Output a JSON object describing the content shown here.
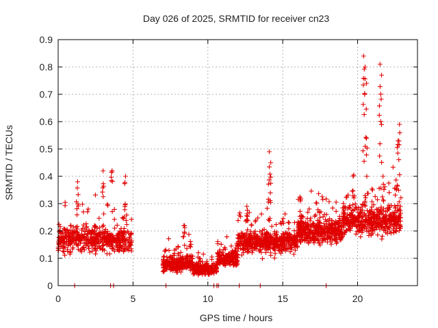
{
  "chart_data": {
    "type": "scatter",
    "title": "Day 026 of 2025, SRMTID for receiver cn23",
    "xlabel": "GPS time / hours",
    "ylabel": "SRMTID / TECUs",
    "xlim": [
      0,
      24
    ],
    "ylim": [
      0,
      0.9
    ],
    "xticks": [
      0,
      5,
      10,
      15,
      20
    ],
    "yticks": [
      0,
      0.1,
      0.2,
      0.3,
      0.4,
      0.5,
      0.6,
      0.7,
      0.8,
      0.9
    ],
    "grid": true,
    "marker": "plus",
    "color": "#e00000",
    "series": [
      {
        "name": "SRMTID",
        "clusters": [
          {
            "x": [
              0.0,
              4.9
            ],
            "baseline": 0.17,
            "spread": 0.08,
            "n": 520
          },
          {
            "x": [
              7.0,
              9.0
            ],
            "baseline": 0.08,
            "spread": 0.05,
            "n": 260
          },
          {
            "x": [
              9.0,
              10.6
            ],
            "baseline": 0.06,
            "spread": 0.03,
            "n": 220
          },
          {
            "x": [
              10.6,
              12.0
            ],
            "baseline": 0.1,
            "spread": 0.05,
            "n": 180
          },
          {
            "x": [
              12.0,
              16.0
            ],
            "baseline": 0.16,
            "spread": 0.07,
            "n": 480
          },
          {
            "x": [
              16.0,
              19.0
            ],
            "baseline": 0.2,
            "spread": 0.08,
            "n": 420
          },
          {
            "x": [
              19.0,
              22.9
            ],
            "baseline": 0.24,
            "spread": 0.09,
            "n": 480
          }
        ],
        "peaks": [
          {
            "x": 1.3,
            "y": 0.38
          },
          {
            "x": 3.0,
            "y": 0.42
          },
          {
            "x": 3.6,
            "y": 0.42
          },
          {
            "x": 4.5,
            "y": 0.4
          },
          {
            "x": 8.4,
            "y": 0.22
          },
          {
            "x": 12.6,
            "y": 0.29
          },
          {
            "x": 14.1,
            "y": 0.49
          },
          {
            "x": 14.2,
            "y": 0.45
          },
          {
            "x": 16.2,
            "y": 0.32
          },
          {
            "x": 19.7,
            "y": 0.4
          },
          {
            "x": 20.4,
            "y": 0.84
          },
          {
            "x": 20.5,
            "y": 0.8
          },
          {
            "x": 20.6,
            "y": 0.74
          },
          {
            "x": 21.5,
            "y": 0.81
          },
          {
            "x": 21.6,
            "y": 0.77
          },
          {
            "x": 21.7,
            "y": 0.4
          },
          {
            "x": 22.8,
            "y": 0.59
          },
          {
            "x": 22.7,
            "y": 0.53
          }
        ],
        "zeros": [
          1.1,
          3.5,
          3.7,
          7.2,
          10.4,
          10.6,
          10.7,
          12.1,
          13.5,
          17.9
        ]
      }
    ]
  }
}
